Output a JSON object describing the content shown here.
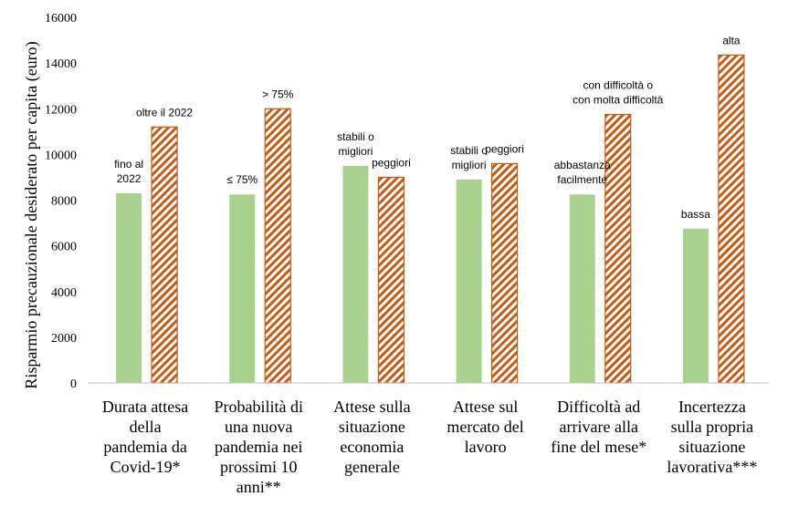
{
  "chart_data": {
    "type": "bar",
    "ylabel": "Risparmio precauzionale desiderato per capita (euro)",
    "ylim": [
      0,
      16000
    ],
    "yticks": [
      "0",
      "2000",
      "4000",
      "6000",
      "8000",
      "10000",
      "12000",
      "14000",
      "16000"
    ],
    "grid": false,
    "series_colors": {
      "first": "#a9d18e",
      "second": "#c55a11"
    },
    "groups": [
      {
        "category": [
          "Durata attesa",
          "della",
          "pandemia da",
          "Covid-19*"
        ],
        "bars": [
          {
            "value": 8300,
            "label": [
              "fino al",
              "2022"
            ]
          },
          {
            "value": 11200,
            "label": [
              "oltre il 2022"
            ]
          }
        ]
      },
      {
        "category": [
          "Probabilità di",
          "una nuova",
          "pandemia nei",
          "prossimi 10",
          "anni**"
        ],
        "bars": [
          {
            "value": 8250,
            "label": [
              "≤ 75%"
            ]
          },
          {
            "value": 12000,
            "label": [
              "> 75%"
            ]
          }
        ]
      },
      {
        "category": [
          "Attese sulla",
          "situazione",
          "economia",
          "generale"
        ],
        "bars": [
          {
            "value": 9500,
            "label": [
              "stabili o",
              "migliori"
            ]
          },
          {
            "value": 9000,
            "label": [
              "peggiori"
            ]
          }
        ]
      },
      {
        "category": [
          "Attese sul",
          "mercato del",
          "lavoro"
        ],
        "bars": [
          {
            "value": 8900,
            "label": [
              "stabili o",
              "migliori"
            ]
          },
          {
            "value": 9600,
            "label": [
              "peggiori"
            ]
          }
        ]
      },
      {
        "category": [
          "Difficoltà ad",
          "arrivare alla",
          "fine del mese*"
        ],
        "bars": [
          {
            "value": 8250,
            "label": [
              "abbastanza",
              "facilmente"
            ]
          },
          {
            "value": 11750,
            "label": [
              "con difficoltà o",
              "con molta difficoltà"
            ]
          }
        ]
      },
      {
        "category": [
          "Incertezza",
          "sulla propria",
          "situazione",
          "lavorativa***"
        ],
        "bars": [
          {
            "value": 6750,
            "label": [
              "bassa"
            ]
          },
          {
            "value": 14350,
            "label": [
              "alta"
            ]
          }
        ]
      }
    ]
  }
}
